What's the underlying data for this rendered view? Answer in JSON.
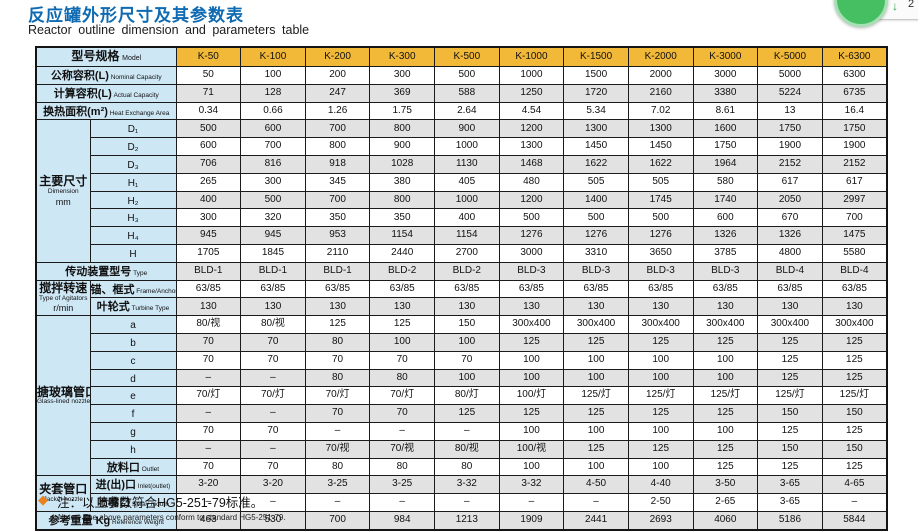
{
  "header": {
    "title_zh": "反应罐外形尺寸及其参数表",
    "title_en": "Reactor outline dimension and parameters table"
  },
  "overlay": {
    "arrow": "↓",
    "count": "2"
  },
  "note": {
    "marker": "◆",
    "zh": "注：以上参数符合HG5-251-79标准。",
    "en": "Notes: The above parameters conform to standard HG5-251-79."
  },
  "colors": {
    "title_blue": "#0E6AB2",
    "header_orange": "#F2B838",
    "label_blue": "#CEE7F5",
    "stripe_gray": "#E2E2E2",
    "note_diamond_orange": "#E8821E",
    "circle_green": "#46BF63"
  },
  "table": {
    "model_zh": "型号规格",
    "model_en": "Model",
    "models": [
      "K-50",
      "K-100",
      "K-200",
      "K-300",
      "K-500",
      "K-1000",
      "K-1500",
      "K-2000",
      "K-3000",
      "K-5000",
      "K-6300"
    ],
    "rows": [
      {
        "label": {
          "zh": "公称容积(L)",
          "en": "Nominal Capacity"
        },
        "wide": true,
        "values": [
          "50",
          "100",
          "200",
          "300",
          "500",
          "1000",
          "1500",
          "2000",
          "3000",
          "5000",
          "6300"
        ]
      },
      {
        "label": {
          "zh": "计算容积(L)",
          "en": "Actual Capacity"
        },
        "wide": true,
        "values": [
          "71",
          "128",
          "247",
          "369",
          "588",
          "1250",
          "1720",
          "2160",
          "3380",
          "5224",
          "6735"
        ]
      },
      {
        "label": {
          "zh": "换热面积(m²)",
          "en": "Heat Exchange Area"
        },
        "wide": true,
        "values": [
          "0.34",
          "0.66",
          "1.26",
          "1.75",
          "2.64",
          "4.54",
          "5.34",
          "7.02",
          "8.61",
          "13",
          "16.4"
        ]
      },
      {
        "group": {
          "zh": "主要尺寸",
          "en": "Dimension",
          "unit": "mm",
          "rows": 8
        },
        "label": {
          "zh": "D₁"
        },
        "plain": true,
        "values": [
          "500",
          "600",
          "700",
          "800",
          "900",
          "1200",
          "1300",
          "1300",
          "1600",
          "1750",
          "1750"
        ]
      },
      {
        "label": {
          "zh": "D₂"
        },
        "plain": true,
        "values": [
          "600",
          "700",
          "800",
          "900",
          "1000",
          "1300",
          "1450",
          "1450",
          "1750",
          "1900",
          "1900"
        ]
      },
      {
        "label": {
          "zh": "D₃"
        },
        "plain": true,
        "values": [
          "706",
          "816",
          "918",
          "1028",
          "1130",
          "1468",
          "1622",
          "1622",
          "1964",
          "2152",
          "2152"
        ]
      },
      {
        "label": {
          "zh": "H₁"
        },
        "plain": true,
        "values": [
          "265",
          "300",
          "345",
          "380",
          "405",
          "480",
          "505",
          "505",
          "580",
          "617",
          "617"
        ]
      },
      {
        "label": {
          "zh": "H₂"
        },
        "plain": true,
        "values": [
          "400",
          "500",
          "700",
          "800",
          "1000",
          "1200",
          "1400",
          "1745",
          "1740",
          "2050",
          "2997"
        ]
      },
      {
        "label": {
          "zh": "H₃"
        },
        "plain": true,
        "values": [
          "300",
          "320",
          "350",
          "350",
          "400",
          "500",
          "500",
          "500",
          "600",
          "670",
          "700"
        ]
      },
      {
        "label": {
          "zh": "H₄"
        },
        "plain": true,
        "values": [
          "945",
          "945",
          "953",
          "1154",
          "1154",
          "1276",
          "1276",
          "1276",
          "1326",
          "1326",
          "1475"
        ]
      },
      {
        "label": {
          "zh": "H"
        },
        "plain": true,
        "values": [
          "1705",
          "1845",
          "2110",
          "2440",
          "2700",
          "3000",
          "3310",
          "3650",
          "3785",
          "4800",
          "5580"
        ]
      },
      {
        "label": {
          "zh": "传动装置型号",
          "en": "Type"
        },
        "wide": true,
        "values": [
          "BLD-1",
          "BLD-1",
          "BLD-1",
          "BLD-2",
          "BLD-2",
          "BLD-3",
          "BLD-3",
          "BLD-3",
          "BLD-3",
          "BLD-4",
          "BLD-4"
        ]
      },
      {
        "group": {
          "zh": "搅拌转速",
          "en": "Type of Agitators",
          "unit": "r/min",
          "rows": 2
        },
        "label": {
          "zh": "锚、框式",
          "en": "Frame/Anchor Type"
        },
        "values": [
          "63/85",
          "63/85",
          "63/85",
          "63/85",
          "63/85",
          "63/85",
          "63/85",
          "63/85",
          "63/85",
          "63/85",
          "63/85"
        ]
      },
      {
        "label": {
          "zh": "叶轮式",
          "en": "Turbine Type"
        },
        "values": [
          "130",
          "130",
          "130",
          "130",
          "130",
          "130",
          "130",
          "130",
          "130",
          "130",
          "130"
        ]
      },
      {
        "group": {
          "zh": "搪玻璃管口",
          "en": "Glass-lined nozzle",
          "rows": 9
        },
        "label": {
          "zh": "a"
        },
        "plain": true,
        "values": [
          "80/视",
          "80/视",
          "125",
          "125",
          "150",
          "300x400",
          "300x400",
          "300x400",
          "300x400",
          "300x400",
          "300x400"
        ]
      },
      {
        "label": {
          "zh": "b"
        },
        "plain": true,
        "values": [
          "70",
          "70",
          "80",
          "100",
          "100",
          "125",
          "125",
          "125",
          "125",
          "125",
          "125"
        ]
      },
      {
        "label": {
          "zh": "c"
        },
        "plain": true,
        "values": [
          "70",
          "70",
          "70",
          "70",
          "70",
          "100",
          "100",
          "100",
          "100",
          "125",
          "125"
        ]
      },
      {
        "label": {
          "zh": "d"
        },
        "plain": true,
        "values": [
          "–",
          "–",
          "80",
          "80",
          "100",
          "100",
          "100",
          "100",
          "100",
          "125",
          "125"
        ]
      },
      {
        "label": {
          "zh": "e"
        },
        "plain": true,
        "values": [
          "70/灯",
          "70/灯",
          "70/灯",
          "70/灯",
          "80/灯",
          "100/灯",
          "125/灯",
          "125/灯",
          "125/灯",
          "125/灯",
          "125/灯"
        ]
      },
      {
        "label": {
          "zh": "f"
        },
        "plain": true,
        "values": [
          "–",
          "–",
          "70",
          "70",
          "125",
          "125",
          "125",
          "125",
          "125",
          "150",
          "150"
        ]
      },
      {
        "label": {
          "zh": "g"
        },
        "plain": true,
        "values": [
          "70",
          "70",
          "–",
          "–",
          "–",
          "100",
          "100",
          "100",
          "100",
          "125",
          "125"
        ]
      },
      {
        "label": {
          "zh": "h"
        },
        "plain": true,
        "values": [
          "–",
          "–",
          "70/视",
          "70/视",
          "80/视",
          "100/视",
          "125",
          "125",
          "125",
          "150",
          "150"
        ]
      },
      {
        "label": {
          "zh": "放料口",
          "en": "Outlet"
        },
        "values": [
          "70",
          "70",
          "80",
          "80",
          "80",
          "100",
          "100",
          "100",
          "125",
          "125",
          "125"
        ]
      },
      {
        "group": {
          "zh": "夹套管口",
          "en": "Jacket nozzle",
          "rows": 2
        },
        "label": {
          "zh": "进(出)口",
          "en": "Inlet(outlet)"
        },
        "values": [
          "3-20",
          "3-20",
          "3-25",
          "3-25",
          "3-32",
          "3-32",
          "4-50",
          "4-40",
          "3-50",
          "3-65",
          "4-65"
        ]
      },
      {
        "label": {
          "zh": "喷嘴口",
          "en": "Spray mouth"
        },
        "values": [
          "–",
          "–",
          "–",
          "–",
          "–",
          "–",
          "–",
          "2-50",
          "2-65",
          "3-65",
          "–"
        ]
      },
      {
        "label": {
          "zh": "参考重量 Kg",
          "en": "Reference Weight"
        },
        "wide": true,
        "values": [
          "463",
          "530",
          "700",
          "984",
          "1213",
          "1909",
          "2441",
          "2693",
          "4060",
          "5186",
          "5844"
        ]
      }
    ]
  }
}
